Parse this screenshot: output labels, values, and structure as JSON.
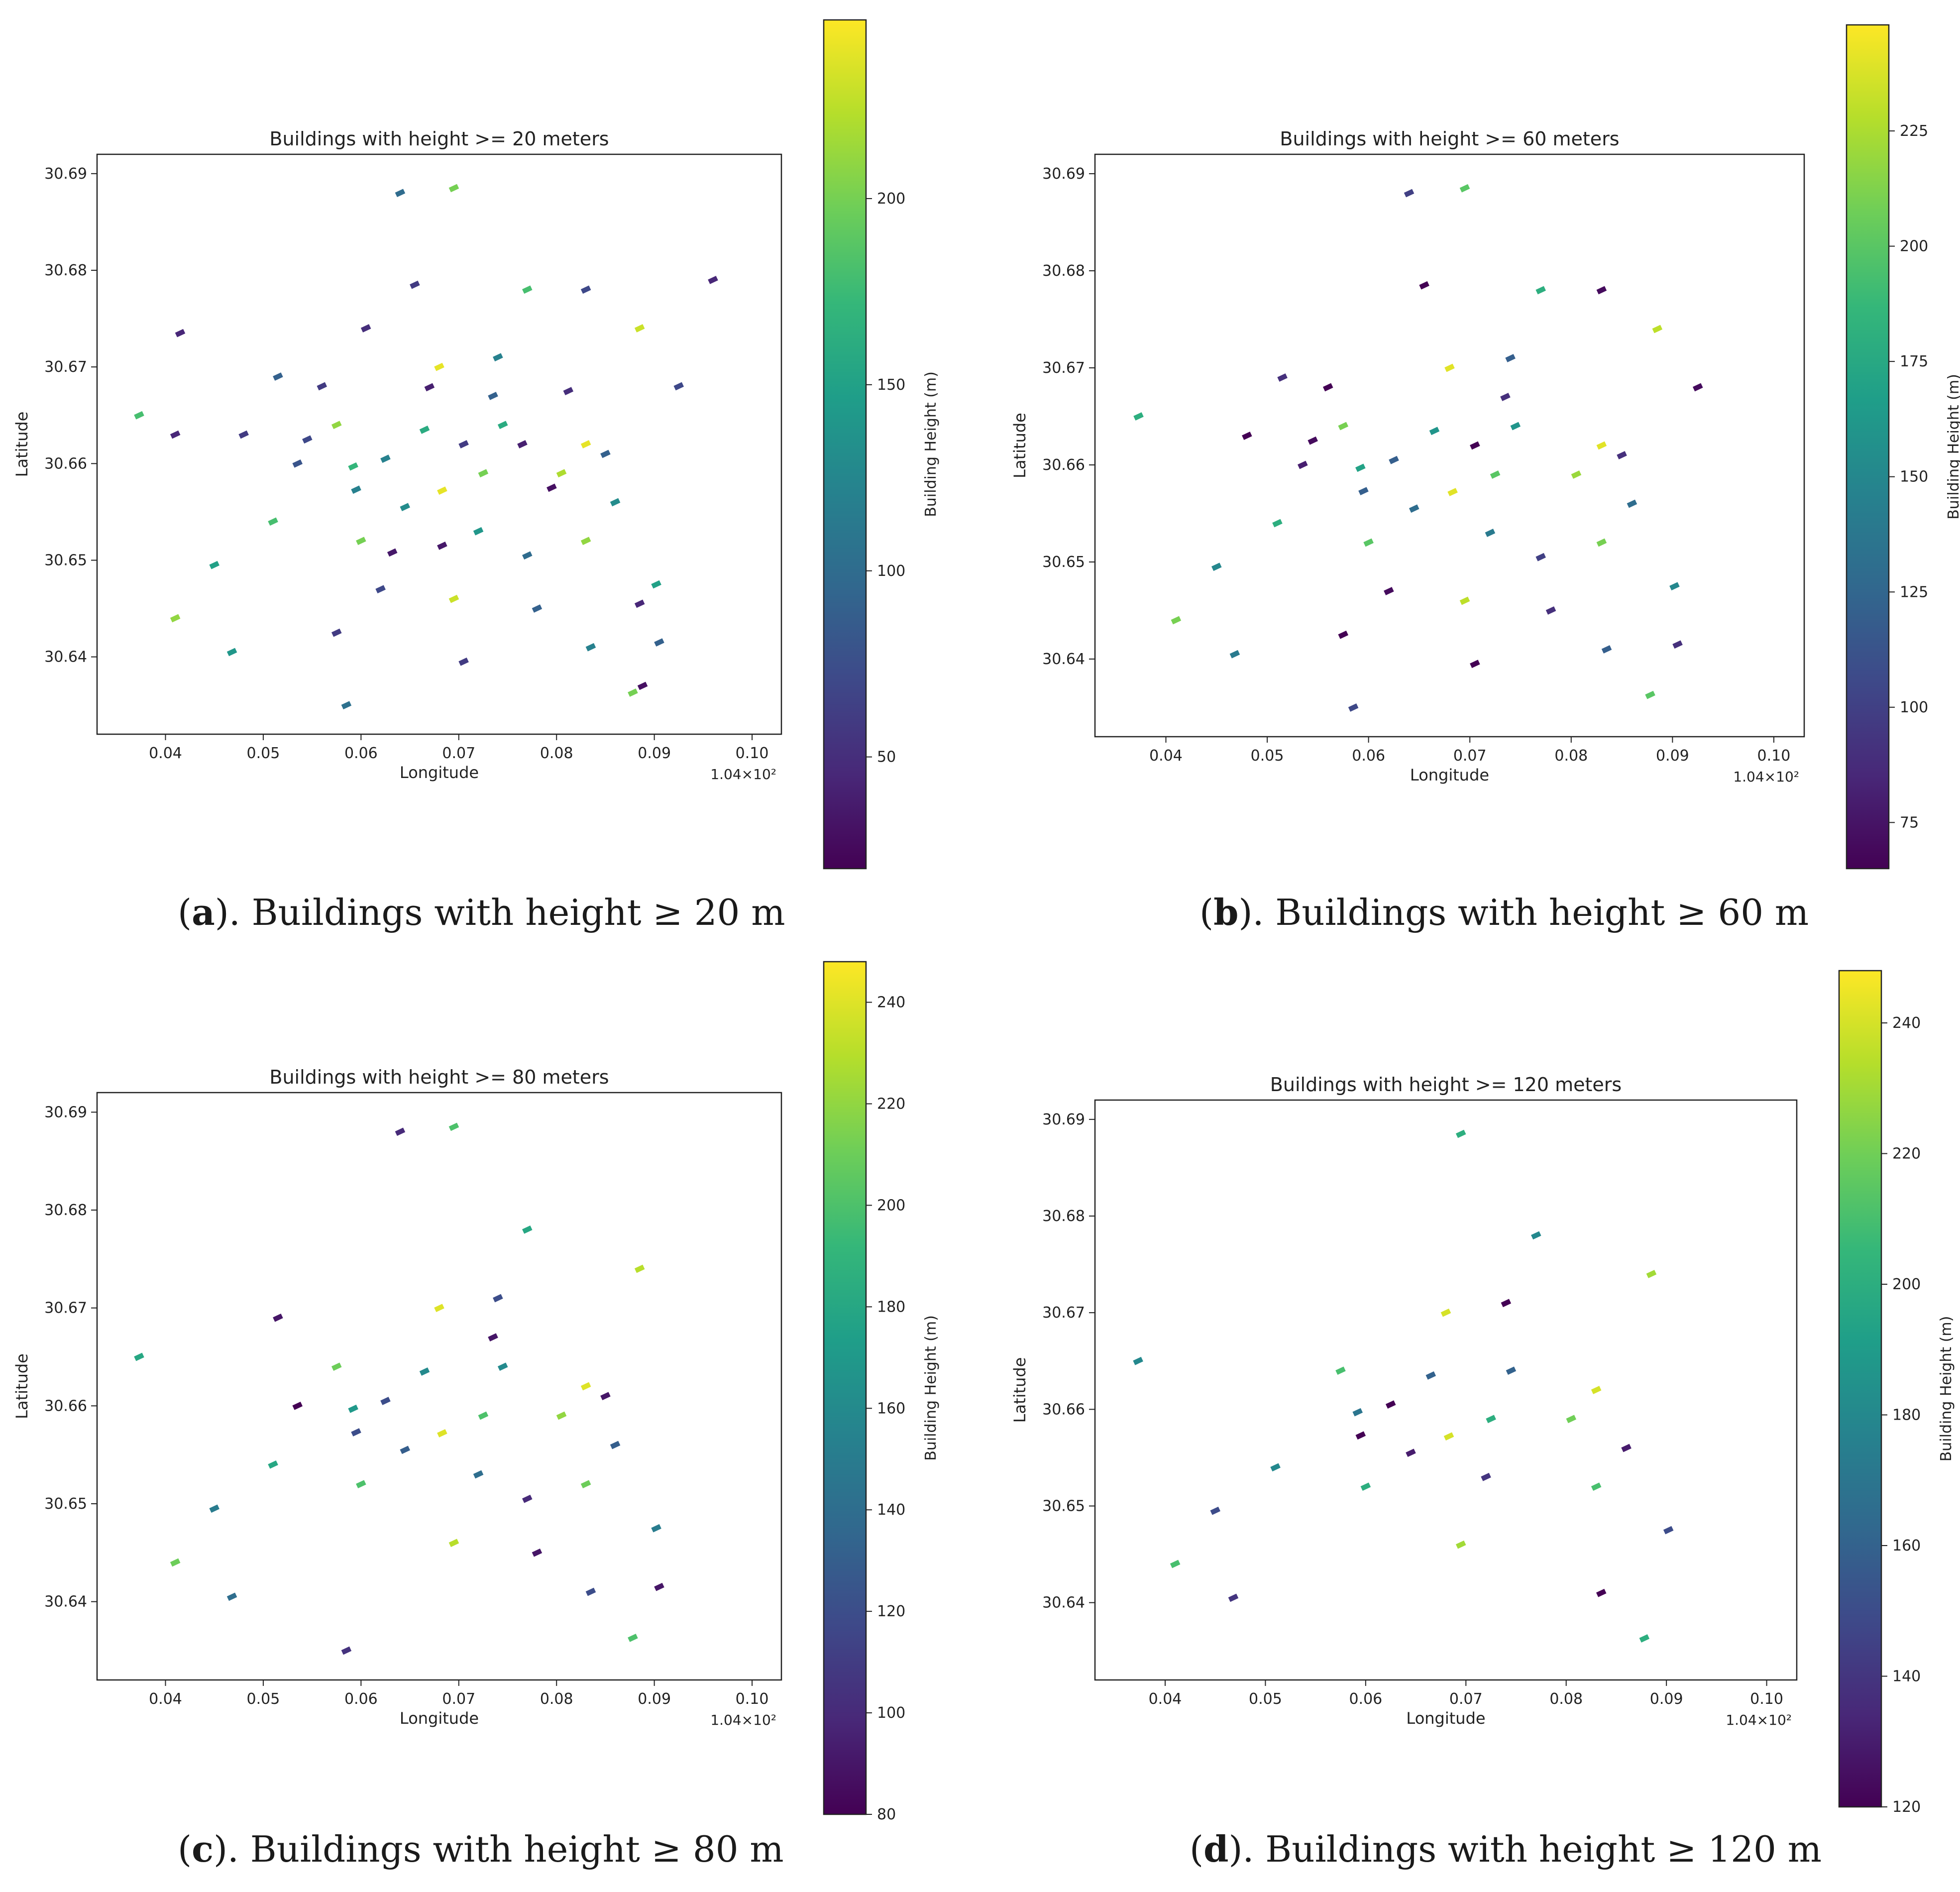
{
  "colormap_stops": [
    "#440154",
    "#482878",
    "#3e4989",
    "#31688e",
    "#26828e",
    "#1f9e89",
    "#35b779",
    "#6ece58",
    "#b5de2b",
    "#fde725"
  ],
  "panels": [
    {
      "caption": {
        "letter": "a",
        "text": "). Buildings with height ≥ 20 m"
      },
      "colorbar": {
        "label": "Building Height (m)",
        "ticks": [
          "50",
          "100",
          "150",
          "200"
        ]
      }
    },
    {
      "caption": {
        "letter": "b",
        "text": "). Buildings with height ≥ 60 m"
      },
      "colorbar": {
        "label": "Building Height (m)",
        "ticks": [
          "75",
          "100",
          "125",
          "150",
          "175",
          "200",
          "225"
        ]
      }
    },
    {
      "caption": {
        "letter": "c",
        "text": "). Buildings with height ≥ 80 m"
      },
      "colorbar": {
        "label": "Building Height (m)",
        "ticks": [
          "80",
          "100",
          "120",
          "140",
          "160",
          "180",
          "200",
          "220",
          "240"
        ]
      }
    },
    {
      "caption": {
        "letter": "d",
        "text": "). Buildings with height ≥ 120 m"
      },
      "colorbar": {
        "label": "Building Height (m)",
        "ticks": [
          "120",
          "140",
          "160",
          "180",
          "200",
          "220",
          "240"
        ]
      }
    }
  ],
  "chart_data": [
    {
      "type": "scatter",
      "title": "Buildings with height >= 20 meters",
      "xlabel": "Longitude",
      "ylabel": "Latitude",
      "x_offset_label": "1.04×10²",
      "xlim": [
        0.033,
        0.103
      ],
      "ylim": [
        30.632,
        30.692
      ],
      "xticks": [
        0.04,
        0.05,
        0.06,
        0.07,
        0.08,
        0.09,
        0.1
      ],
      "xtick_labels": [
        "0.04",
        "0.05",
        "0.06",
        "0.07",
        "0.08",
        "0.09",
        "0.10"
      ],
      "yticks": [
        30.64,
        30.65,
        30.66,
        30.67,
        30.68,
        30.69
      ],
      "ytick_labels": [
        "30.64",
        "30.65",
        "30.66",
        "30.67",
        "30.68",
        "30.69"
      ],
      "color_range": [
        20,
        248
      ],
      "min_height": 20,
      "points": [
        [
          0.0595,
          30.6573,
          120
        ],
        [
          0.0585,
          30.635,
          105
        ],
        [
          0.067,
          30.6679,
          40
        ],
        [
          0.0795,
          30.6575,
          30
        ],
        [
          0.0683,
          30.6572,
          240
        ],
        [
          0.0592,
          30.6597,
          170
        ],
        [
          0.0632,
          30.6508,
          35
        ],
        [
          0.0683,
          30.6515,
          35
        ],
        [
          0.0885,
          30.6455,
          45
        ],
        [
          0.0888,
          30.637,
          30
        ],
        [
          0.0878,
          30.6363,
          200
        ],
        [
          0.0415,
          30.6735,
          45
        ],
        [
          0.0373,
          30.665,
          180
        ],
        [
          0.041,
          30.663,
          45
        ],
        [
          0.0545,
          30.6625,
          70
        ],
        [
          0.0625,
          30.6605,
          120
        ],
        [
          0.0705,
          30.662,
          60
        ],
        [
          0.0745,
          30.664,
          160
        ],
        [
          0.0725,
          30.659,
          200
        ],
        [
          0.0805,
          30.659,
          220
        ],
        [
          0.085,
          30.661,
          90
        ],
        [
          0.0902,
          30.6475,
          150
        ],
        [
          0.0575,
          30.664,
          210
        ],
        [
          0.0695,
          30.646,
          230
        ],
        [
          0.051,
          30.654,
          180
        ],
        [
          0.0645,
          30.6555,
          130
        ],
        [
          0.0665,
          30.6635,
          160
        ],
        [
          0.0735,
          30.667,
          90
        ],
        [
          0.0812,
          30.6675,
          50
        ],
        [
          0.0925,
          30.668,
          70
        ],
        [
          0.096,
          30.679,
          45
        ],
        [
          0.0905,
          30.6415,
          90
        ],
        [
          0.0468,
          30.6405,
          140
        ],
        [
          0.041,
          30.644,
          210
        ],
        [
          0.0705,
          30.6395,
          60
        ],
        [
          0.0575,
          30.6425,
          60
        ],
        [
          0.0655,
          30.6785,
          60
        ],
        [
          0.0695,
          30.6885,
          200
        ],
        [
          0.064,
          30.688,
          100
        ],
        [
          0.0835,
          30.641,
          120
        ],
        [
          0.0515,
          30.669,
          90
        ],
        [
          0.045,
          30.6495,
          150
        ],
        [
          0.056,
          30.668,
          60
        ],
        [
          0.077,
          30.6505,
          100
        ],
        [
          0.083,
          30.652,
          210
        ],
        [
          0.086,
          30.656,
          130
        ],
        [
          0.0535,
          30.66,
          80
        ],
        [
          0.06,
          30.652,
          200
        ],
        [
          0.074,
          30.671,
          120
        ],
        [
          0.077,
          30.678,
          180
        ],
        [
          0.083,
          30.678,
          70
        ],
        [
          0.0885,
          30.674,
          230
        ],
        [
          0.048,
          30.663,
          60
        ],
        [
          0.078,
          30.645,
          90
        ],
        [
          0.0605,
          30.674,
          50
        ],
        [
          0.072,
          30.653,
          140
        ],
        [
          0.0765,
          30.662,
          40
        ],
        [
          0.068,
          30.67,
          240
        ],
        [
          0.083,
          30.662,
          240
        ],
        [
          0.062,
          30.647,
          70
        ]
      ]
    },
    {
      "type": "scatter",
      "title": "Buildings with height >= 60 meters",
      "xlabel": "Longitude",
      "ylabel": "Latitude",
      "x_offset_label": "1.04×10²",
      "xlim": [
        0.033,
        0.103
      ],
      "ylim": [
        30.632,
        30.692
      ],
      "xticks": [
        0.04,
        0.05,
        0.06,
        0.07,
        0.08,
        0.09,
        0.1
      ],
      "xtick_labels": [
        "0.04",
        "0.05",
        "0.06",
        "0.07",
        "0.08",
        "0.09",
        "0.10"
      ],
      "yticks": [
        30.64,
        30.65,
        30.66,
        30.67,
        30.68,
        30.69
      ],
      "ytick_labels": [
        "30.64",
        "30.65",
        "30.66",
        "30.67",
        "30.68",
        "30.69"
      ],
      "color_range": [
        65,
        248
      ],
      "min_height": 60
    },
    {
      "type": "scatter",
      "title": "Buildings with height >= 80 meters",
      "xlabel": "Longitude",
      "ylabel": "Latitude",
      "x_offset_label": "1.04×10²",
      "xlim": [
        0.033,
        0.103
      ],
      "ylim": [
        30.632,
        30.692
      ],
      "xticks": [
        0.04,
        0.05,
        0.06,
        0.07,
        0.08,
        0.09,
        0.1
      ],
      "xtick_labels": [
        "0.04",
        "0.05",
        "0.06",
        "0.07",
        "0.08",
        "0.09",
        "0.10"
      ],
      "yticks": [
        30.64,
        30.65,
        30.66,
        30.67,
        30.68,
        30.69
      ],
      "ytick_labels": [
        "30.64",
        "30.65",
        "30.66",
        "30.67",
        "30.68",
        "30.69"
      ],
      "color_range": [
        80,
        248
      ],
      "min_height": 80
    },
    {
      "type": "scatter",
      "title": "Buildings with height >= 120 meters",
      "xlabel": "Longitude",
      "ylabel": "Latitude",
      "x_offset_label": "1.04×10²",
      "xlim": [
        0.033,
        0.103
      ],
      "ylim": [
        30.632,
        30.692
      ],
      "xticks": [
        0.04,
        0.05,
        0.06,
        0.07,
        0.08,
        0.09,
        0.1
      ],
      "xtick_labels": [
        "0.04",
        "0.05",
        "0.06",
        "0.07",
        "0.08",
        "0.09",
        "0.10"
      ],
      "yticks": [
        30.64,
        30.65,
        30.66,
        30.67,
        30.68,
        30.69
      ],
      "ytick_labels": [
        "30.64",
        "30.65",
        "30.66",
        "30.67",
        "30.68",
        "30.69"
      ],
      "color_range": [
        120,
        248
      ],
      "min_height": 120
    }
  ]
}
